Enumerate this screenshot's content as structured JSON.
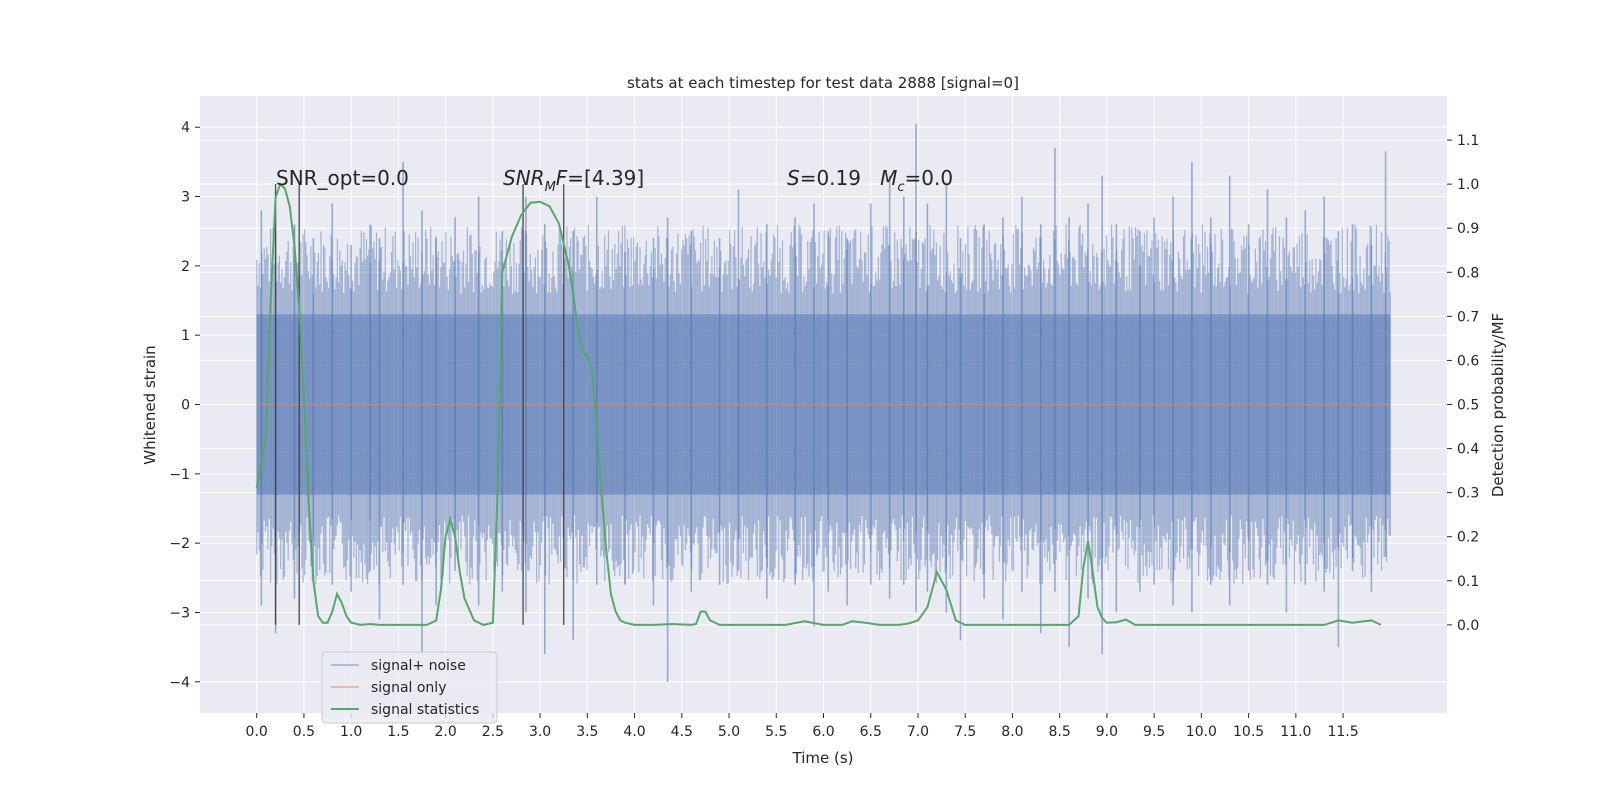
{
  "chart_data": {
    "type": "line",
    "title": "stats at each timestep for test data 2888 [signal=0]",
    "xlabel": "Time (s)",
    "ylabel": "Whitened strain",
    "y2label": "Detection probability/MF",
    "xlim": [
      -0.6,
      12.6
    ],
    "ylim": [
      -4.45,
      4.45
    ],
    "y2lim": [
      -0.2,
      1.2
    ],
    "grid": true,
    "legend_position": "lower-left",
    "x_ticks": [
      0.0,
      0.5,
      1.0,
      1.5,
      2.0,
      2.5,
      3.0,
      3.5,
      4.0,
      4.5,
      5.0,
      5.5,
      6.0,
      6.5,
      7.0,
      7.5,
      8.0,
      8.5,
      9.0,
      9.5,
      10.0,
      10.5,
      11.0,
      11.5
    ],
    "x_tick_labels": [
      "0.0",
      "0.5",
      "1.0",
      "1.5",
      "2.0",
      "2.5",
      "3.0",
      "3.5",
      "4.0",
      "4.5",
      "5.0",
      "5.5",
      "6.0",
      "6.5",
      "7.0",
      "7.5",
      "8.0",
      "8.5",
      "9.0",
      "9.5",
      "10.0",
      "10.5",
      "11.0",
      "11.5"
    ],
    "y_ticks": [
      4,
      3,
      2,
      1,
      0,
      -1,
      -2,
      -3,
      -4
    ],
    "y_tick_labels": [
      "4",
      "3",
      "2",
      "1",
      "0",
      "−1",
      "−2",
      "−3",
      "−4"
    ],
    "y2_ticks": [
      1.1,
      1.0,
      0.9,
      0.8,
      0.7,
      0.6,
      0.5,
      0.4,
      0.3,
      0.2,
      0.1,
      0.0
    ],
    "y2_tick_labels": [
      "1.1",
      "1.0",
      "0.9",
      "0.8",
      "0.7",
      "0.6",
      "0.5",
      "0.4",
      "0.3",
      "0.2",
      "0.1",
      "0.0"
    ],
    "series": [
      {
        "name": "signal+ noise",
        "color": "#4C72B0",
        "axis": "left",
        "x_range": [
          0.0,
          12.0
        ],
        "band": [
          -1.3,
          1.3
        ],
        "spikes": [
          [
            0.05,
            2.8,
            -2.9
          ],
          [
            0.2,
            2.5,
            -3.3
          ],
          [
            0.4,
            2.6,
            -2.8
          ],
          [
            0.6,
            2.4,
            -2.5
          ],
          [
            0.8,
            2.9,
            -2.6
          ],
          [
            1.0,
            2.3,
            -2.7
          ],
          [
            1.2,
            2.6,
            -2.4
          ],
          [
            1.3,
            2.4,
            -3.1
          ],
          [
            1.55,
            3.5,
            -2.6
          ],
          [
            1.75,
            2.8,
            -3.6
          ],
          [
            1.9,
            2.4,
            -2.9
          ],
          [
            2.1,
            2.7,
            -2.4
          ],
          [
            2.35,
            3.0,
            -2.9
          ],
          [
            2.6,
            2.5,
            -2.7
          ],
          [
            2.85,
            3.0,
            -3.0
          ],
          [
            3.05,
            2.6,
            -3.6
          ],
          [
            3.35,
            2.5,
            -3.4
          ],
          [
            3.6,
            3.0,
            -2.6
          ],
          [
            3.9,
            2.2,
            -2.6
          ],
          [
            4.2,
            2.4,
            -2.9
          ],
          [
            4.35,
            2.7,
            -4.0
          ],
          [
            4.6,
            2.5,
            -2.7
          ],
          [
            4.9,
            2.4,
            -2.6
          ],
          [
            5.1,
            3.1,
            -2.4
          ],
          [
            5.4,
            2.6,
            -2.8
          ],
          [
            5.7,
            2.7,
            -2.6
          ],
          [
            5.9,
            2.9,
            -3.2
          ],
          [
            6.05,
            2.5,
            -2.7
          ],
          [
            6.25,
            2.4,
            -2.9
          ],
          [
            6.5,
            2.9,
            -2.6
          ],
          [
            6.7,
            3.3,
            -2.8
          ],
          [
            6.85,
            3.0,
            -2.6
          ],
          [
            6.98,
            4.05,
            -3.0
          ],
          [
            7.1,
            2.9,
            -2.7
          ],
          [
            7.3,
            3.2,
            -3.0
          ],
          [
            7.45,
            2.4,
            -3.4
          ],
          [
            7.7,
            2.6,
            -2.8
          ],
          [
            7.9,
            2.7,
            -3.1
          ],
          [
            8.1,
            3.0,
            -2.7
          ],
          [
            8.3,
            2.6,
            -3.3
          ],
          [
            8.45,
            3.7,
            -2.7
          ],
          [
            8.6,
            2.7,
            -3.5
          ],
          [
            8.8,
            2.9,
            -2.8
          ],
          [
            8.95,
            3.3,
            -3.6
          ],
          [
            9.1,
            2.6,
            -3.0
          ],
          [
            9.35,
            2.5,
            -2.7
          ],
          [
            9.5,
            2.7,
            -2.6
          ],
          [
            9.7,
            3.0,
            -2.9
          ],
          [
            9.9,
            3.5,
            -3.0
          ],
          [
            10.1,
            2.7,
            -2.6
          ],
          [
            10.3,
            3.3,
            -2.9
          ],
          [
            10.5,
            2.6,
            -2.4
          ],
          [
            10.7,
            3.1,
            -2.6
          ],
          [
            10.9,
            2.7,
            -3.0
          ],
          [
            11.1,
            2.8,
            -2.6
          ],
          [
            11.3,
            3.0,
            -2.7
          ],
          [
            11.45,
            2.5,
            -3.5
          ],
          [
            11.6,
            2.6,
            -2.4
          ],
          [
            11.8,
            2.3,
            -2.7
          ],
          [
            11.95,
            3.65,
            -2.2
          ]
        ]
      },
      {
        "name": "signal only",
        "color": "#DD8452",
        "axis": "left",
        "x": [
          0.0,
          12.0
        ],
        "y": [
          0.0,
          0.0
        ]
      },
      {
        "name": "signal statistics",
        "color": "#55A868",
        "axis": "right",
        "x": [
          0.0,
          0.1,
          0.15,
          0.2,
          0.25,
          0.3,
          0.35,
          0.4,
          0.45,
          0.5,
          0.55,
          0.6,
          0.65,
          0.7,
          0.75,
          0.8,
          0.85,
          0.9,
          0.95,
          1.0,
          1.1,
          1.2,
          1.3,
          1.4,
          1.6,
          1.8,
          1.9,
          1.95,
          2.0,
          2.05,
          2.1,
          2.15,
          2.2,
          2.3,
          2.4,
          2.5,
          2.55,
          2.6,
          2.65,
          2.7,
          2.8,
          2.9,
          3.0,
          3.1,
          3.2,
          3.3,
          3.35,
          3.4,
          3.45,
          3.5,
          3.55,
          3.6,
          3.65,
          3.7,
          3.75,
          3.8,
          3.85,
          3.9,
          4.0,
          4.2,
          4.4,
          4.6,
          4.65,
          4.7,
          4.75,
          4.8,
          4.9,
          5.0,
          5.3,
          5.6,
          5.8,
          6.0,
          6.2,
          6.3,
          6.4,
          6.6,
          6.8,
          6.9,
          7.0,
          7.1,
          7.2,
          7.3,
          7.4,
          7.5,
          7.6,
          7.8,
          8.0,
          8.3,
          8.6,
          8.7,
          8.75,
          8.8,
          8.85,
          8.9,
          8.95,
          9.0,
          9.1,
          9.2,
          9.3,
          9.5,
          10.0,
          10.5,
          11.0,
          11.3,
          11.45,
          11.6,
          11.8,
          11.9
        ],
        "y": [
          0.31,
          0.43,
          0.75,
          0.97,
          1.0,
          0.99,
          0.95,
          0.86,
          0.72,
          0.52,
          0.28,
          0.1,
          0.02,
          0.005,
          0.005,
          0.03,
          0.07,
          0.05,
          0.02,
          0.005,
          0.0,
          0.002,
          0.0,
          0.0,
          0.0,
          0.0,
          0.01,
          0.08,
          0.2,
          0.24,
          0.2,
          0.12,
          0.06,
          0.01,
          0.0,
          0.005,
          0.3,
          0.8,
          0.84,
          0.88,
          0.93,
          0.958,
          0.96,
          0.95,
          0.91,
          0.82,
          0.75,
          0.67,
          0.62,
          0.61,
          0.58,
          0.45,
          0.3,
          0.17,
          0.07,
          0.03,
          0.01,
          0.005,
          0.0,
          0.0,
          0.002,
          0.0,
          0.002,
          0.03,
          0.03,
          0.01,
          0.0,
          0.0,
          0.0,
          0.0,
          0.008,
          0.0,
          0.0,
          0.008,
          0.006,
          0.0,
          0.0,
          0.003,
          0.01,
          0.04,
          0.12,
          0.08,
          0.01,
          0.0,
          0.0,
          0.0,
          0.0,
          0.0,
          0.0,
          0.02,
          0.13,
          0.19,
          0.12,
          0.04,
          0.015,
          0.005,
          0.006,
          0.012,
          0.0,
          0.0,
          0.0,
          0.0,
          0.0,
          0.0,
          0.01,
          0.005,
          0.01,
          0.0
        ]
      }
    ],
    "vertical_markers": [
      0.2,
      0.45,
      2.82,
      3.25
    ],
    "annotations": [
      {
        "text": "SNR_opt=0.0",
        "x": 0.22,
        "y": 1.0
      },
      {
        "text": "SNR_MF=[4.39]",
        "x": 2.61,
        "y": 1.0
      },
      {
        "text": "S=0.19   Mc=0.0",
        "x": 5.6,
        "y": 1.0
      }
    ],
    "legend": [
      "signal+ noise",
      "signal only",
      "signal statistics"
    ]
  }
}
